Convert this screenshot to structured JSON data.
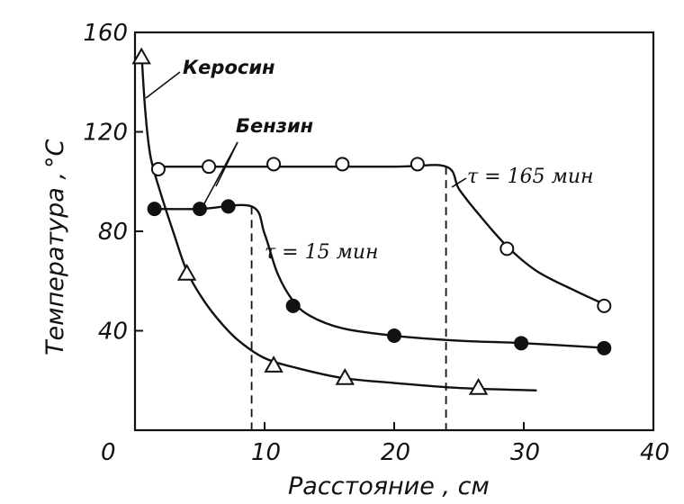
{
  "chart_data": {
    "type": "line",
    "xlabel": "Расстояние , см",
    "ylabel": "Температура ,",
    "yunit": "°C",
    "xlim": [
      0,
      40
    ],
    "ylim": [
      0,
      160
    ],
    "xticks": [
      "0",
      "10",
      "20",
      "30",
      "40"
    ],
    "yticks": [
      "40",
      "80",
      "120",
      "160"
    ],
    "grid": false,
    "series": [
      {
        "name": "Керосин",
        "marker": "triangle-open",
        "points": [
          [
            0.5,
            150
          ],
          [
            4,
            63
          ],
          [
            10.7,
            26
          ],
          [
            16.2,
            21
          ],
          [
            26.5,
            17
          ]
        ],
        "curve": [
          [
            0.5,
            152
          ],
          [
            0.8,
            128
          ],
          [
            1.2,
            110
          ],
          [
            2,
            95
          ],
          [
            3,
            79
          ],
          [
            4,
            64
          ],
          [
            5.2,
            53
          ],
          [
            6.5,
            44
          ],
          [
            8,
            36
          ],
          [
            10,
            29
          ],
          [
            12.5,
            25
          ],
          [
            16,
            21
          ],
          [
            20,
            19
          ],
          [
            25,
            17
          ],
          [
            31,
            16
          ]
        ]
      },
      {
        "name": "Бензин",
        "marker": "circle-filled",
        "annotation": "τ = 15 мин",
        "points": [
          [
            1.5,
            89
          ],
          [
            5,
            89
          ],
          [
            7.2,
            90
          ],
          [
            12.2,
            50
          ],
          [
            20,
            38
          ],
          [
            29.8,
            35
          ],
          [
            36.2,
            33
          ]
        ],
        "curve": [
          [
            1.5,
            89
          ],
          [
            5,
            89
          ],
          [
            9,
            90
          ],
          [
            10,
            79
          ],
          [
            11,
            63
          ],
          [
            12.2,
            52
          ],
          [
            13.5,
            46
          ],
          [
            16,
            41
          ],
          [
            20,
            38
          ],
          [
            25,
            36
          ],
          [
            30,
            35
          ],
          [
            36.5,
            33
          ]
        ]
      },
      {
        "name": "Бензин",
        "marker": "circle-open",
        "annotation": "τ = 165 мин",
        "points": [
          [
            1.8,
            105
          ],
          [
            5.7,
            106
          ],
          [
            10.7,
            107
          ],
          [
            16,
            107
          ],
          [
            21.8,
            107
          ],
          [
            28.7,
            73
          ],
          [
            36.2,
            50
          ]
        ],
        "curve": [
          [
            1.8,
            106
          ],
          [
            10,
            106
          ],
          [
            20,
            106
          ],
          [
            24,
            106
          ],
          [
            25,
            97
          ],
          [
            26.5,
            87
          ],
          [
            28.7,
            74
          ],
          [
            31,
            64
          ],
          [
            34,
            56
          ],
          [
            36.5,
            50
          ]
        ]
      }
    ],
    "reference_lines_x": [
      9,
      24
    ],
    "annotations": {
      "kerosene": "Керосин",
      "benzine": "Бензин",
      "tau_15": "τ = 15 мин",
      "tau_165": "τ = 165 мин"
    }
  }
}
